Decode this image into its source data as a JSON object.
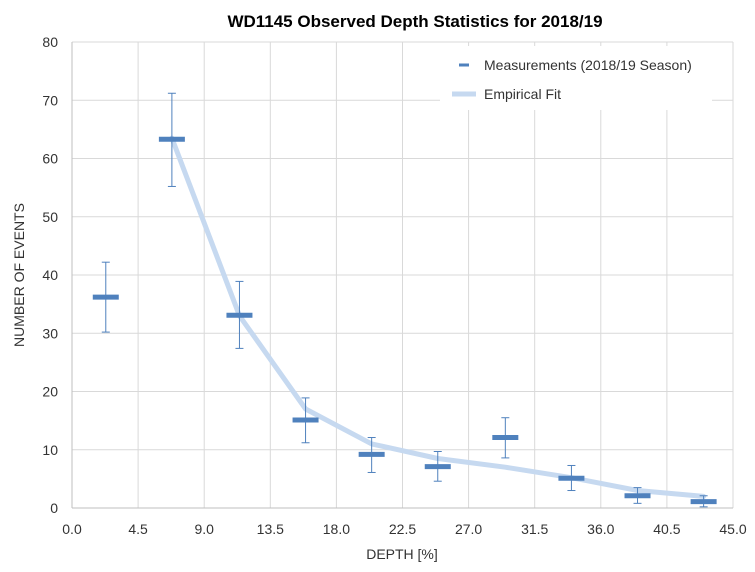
{
  "chart_data": {
    "type": "scatter",
    "title": "WD1145 Observed Depth Statistics for 2018/19",
    "xlabel": "DEPTH [%]",
    "ylabel": "NUMBER OF EVENTS",
    "xlim": [
      0,
      45
    ],
    "ylim": [
      0,
      80
    ],
    "x_ticks": [
      0,
      4.5,
      9,
      13.5,
      18,
      22.5,
      27,
      31.5,
      36,
      40.5,
      45
    ],
    "x_tick_labels": [
      "0.0",
      "4.5",
      "9.0",
      "13.5",
      "18.0",
      "22.5",
      "27.0",
      "31.5",
      "36.0",
      "40.5",
      "45.0"
    ],
    "y_ticks": [
      0,
      10,
      20,
      30,
      40,
      50,
      60,
      70,
      80
    ],
    "y_tick_labels": [
      "0",
      "10",
      "20",
      "30",
      "40",
      "50",
      "60",
      "70",
      "80"
    ],
    "grid": true,
    "legend_position": "top-right",
    "series": [
      {
        "name": "Measurements (2018/19 Season)",
        "kind": "errorbar",
        "color": "#4f81bd",
        "points": [
          {
            "x": 2.3,
            "y": 36.2,
            "low": 30.2,
            "high": 42.2
          },
          {
            "x": 6.8,
            "y": 63.3,
            "low": 55.2,
            "high": 71.2
          },
          {
            "x": 11.4,
            "y": 33.1,
            "low": 27.4,
            "high": 38.9
          },
          {
            "x": 15.9,
            "y": 15.1,
            "low": 11.2,
            "high": 18.9
          },
          {
            "x": 20.4,
            "y": 9.2,
            "low": 6.1,
            "high": 12.1
          },
          {
            "x": 24.9,
            "y": 7.1,
            "low": 4.6,
            "high": 9.7
          },
          {
            "x": 29.5,
            "y": 12.1,
            "low": 8.6,
            "high": 15.5
          },
          {
            "x": 34.0,
            "y": 5.1,
            "low": 3.0,
            "high": 7.3
          },
          {
            "x": 38.5,
            "y": 2.1,
            "low": 0.8,
            "high": 3.5
          },
          {
            "x": 43.0,
            "y": 1.1,
            "low": 0.2,
            "high": 2.1
          }
        ]
      },
      {
        "name": "Empirical Fit",
        "kind": "line",
        "color": "#c6d9f0",
        "points": [
          {
            "x": 6.8,
            "y": 63.5
          },
          {
            "x": 11.4,
            "y": 33.0
          },
          {
            "x": 15.9,
            "y": 17.0
          },
          {
            "x": 20.4,
            "y": 11.0
          },
          {
            "x": 24.9,
            "y": 8.5
          },
          {
            "x": 29.5,
            "y": 7.0
          },
          {
            "x": 34.0,
            "y": 5.2
          },
          {
            "x": 38.5,
            "y": 3.0
          },
          {
            "x": 43.0,
            "y": 2.0
          }
        ]
      }
    ]
  }
}
